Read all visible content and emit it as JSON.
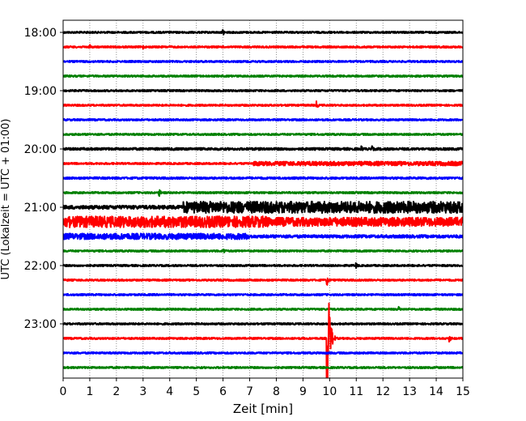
{
  "chart_data": {
    "type": "line",
    "title": "",
    "xlabel": "Zeit  [min]",
    "ylabel": "UTC (Lokalzeit = UTC + 01:00)",
    "xlim": [
      0,
      15
    ],
    "xticks": [
      "0",
      "1",
      "2",
      "3",
      "4",
      "5",
      "6",
      "7",
      "8",
      "9",
      "10",
      "11",
      "12",
      "13",
      "14",
      "15"
    ],
    "yticks": [
      "18:00",
      "19:00",
      "20:00",
      "21:00",
      "22:00",
      "23:00"
    ],
    "grid": "vertical dotted",
    "trace_colors": [
      "#000000",
      "#ff0000",
      "#0000ff",
      "#008000"
    ],
    "trace_note": "each row is 15 min of seismogram; amplitude as fraction of row spacing",
    "series": [
      {
        "name": "18:00",
        "base_amp": 0.06,
        "events": [
          {
            "t": 6.0,
            "amp": 0.25
          }
        ]
      },
      {
        "name": "18:15",
        "base_amp": 0.06,
        "events": [
          {
            "t": 1.0,
            "amp": 0.2
          },
          {
            "t": 3.0,
            "amp": 0.15
          }
        ]
      },
      {
        "name": "18:30",
        "base_amp": 0.06,
        "events": []
      },
      {
        "name": "18:45",
        "base_amp": 0.06,
        "events": []
      },
      {
        "name": "19:00",
        "base_amp": 0.06,
        "events": []
      },
      {
        "name": "19:15",
        "base_amp": 0.06,
        "events": [
          {
            "t": 9.5,
            "amp": 0.3
          }
        ]
      },
      {
        "name": "19:30",
        "base_amp": 0.06,
        "events": []
      },
      {
        "name": "19:45",
        "base_amp": 0.06,
        "events": []
      },
      {
        "name": "20:00",
        "base_amp": 0.08,
        "events": [
          {
            "t": 11.2,
            "amp": 0.2
          },
          {
            "t": 11.6,
            "amp": 0.2
          }
        ]
      },
      {
        "name": "20:15",
        "base_amp": 0.06,
        "late_amp": 0.14,
        "late_from": 7.1,
        "events": []
      },
      {
        "name": "20:30",
        "base_amp": 0.07,
        "events": []
      },
      {
        "name": "20:45",
        "base_amp": 0.06,
        "events": [
          {
            "t": 3.6,
            "amp": 0.3
          }
        ]
      },
      {
        "name": "21:00",
        "base_amp": 0.12,
        "late_amp": 0.4,
        "late_from": 4.5,
        "events": []
      },
      {
        "name": "21:15",
        "base_amp": 0.38,
        "late_amp": 0.3,
        "late_from": 7.7,
        "events": []
      },
      {
        "name": "21:30",
        "base_amp": 0.2,
        "late_amp": 0.1,
        "late_from": 7.0,
        "events": []
      },
      {
        "name": "21:45",
        "base_amp": 0.06,
        "events": [
          {
            "t": 6.0,
            "amp": 0.3
          }
        ]
      },
      {
        "name": "22:00",
        "base_amp": 0.06,
        "events": [
          {
            "t": 11.0,
            "amp": 0.2
          }
        ]
      },
      {
        "name": "22:15",
        "base_amp": 0.06,
        "events": [
          {
            "t": 9.9,
            "amp": 0.4
          }
        ]
      },
      {
        "name": "22:30",
        "base_amp": 0.06,
        "events": []
      },
      {
        "name": "22:45",
        "base_amp": 0.06,
        "events": [
          {
            "t": 12.6,
            "amp": 0.2
          }
        ]
      },
      {
        "name": "23:00",
        "base_amp": 0.06,
        "events": []
      },
      {
        "name": "23:15",
        "base_amp": 0.06,
        "events": [
          {
            "t": 9.9,
            "amp": 6.0
          },
          {
            "t": 14.5,
            "amp": 0.25
          }
        ]
      },
      {
        "name": "23:30",
        "base_amp": 0.06,
        "events": []
      },
      {
        "name": "23:45",
        "base_amp": 0.06,
        "events": []
      }
    ]
  }
}
